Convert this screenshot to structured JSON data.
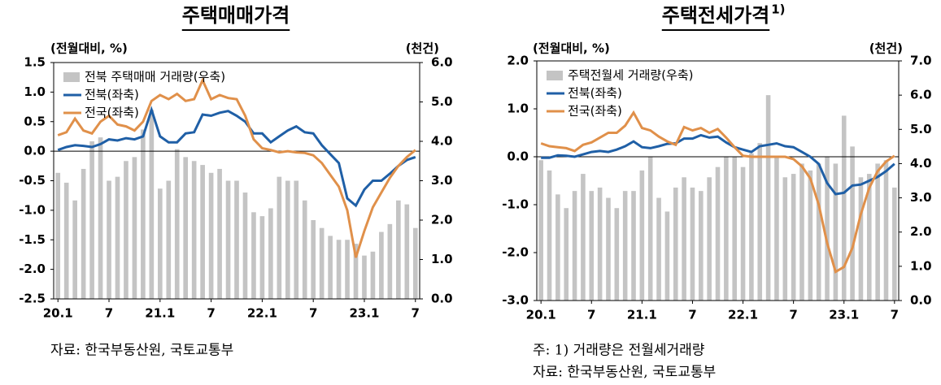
{
  "chart_data": [
    {
      "type": "line",
      "title": "주택매매가격",
      "y_label": "(전월대비, %)",
      "y2_label": "(천건)",
      "categories": [
        "20.1",
        null,
        null,
        null,
        null,
        null,
        "7",
        null,
        null,
        null,
        null,
        null,
        "21.1",
        null,
        null,
        null,
        null,
        null,
        "7",
        null,
        null,
        null,
        null,
        null,
        "22.1",
        null,
        null,
        null,
        null,
        null,
        "7",
        null,
        null,
        null,
        null,
        null,
        "23.1",
        null,
        null,
        null,
        null,
        null,
        "7"
      ],
      "ylim": [
        -2.5,
        1.5
      ],
      "yticks": [
        1.5,
        {
          "value": 1.0,
          "label": "1.0"
        },
        0.5,
        {
          "value": 0.0,
          "label": "0.0"
        },
        -0.5,
        {
          "value": -1.0,
          "label": "-1.0"
        },
        -1.5,
        {
          "value": -2.0,
          "label": "-2.0"
        },
        -2.5
      ],
      "y2lim": [
        0,
        6
      ],
      "y2ticks": [
        {
          "value": 6,
          "label": "6.0"
        },
        {
          "value": 5,
          "label": "5.0"
        },
        {
          "value": 4,
          "label": "4.0"
        },
        {
          "value": 3,
          "label": "3.0"
        },
        {
          "value": 2,
          "label": "2.0"
        },
        {
          "value": 1,
          "label": "1.0"
        },
        {
          "value": 0,
          "label": "0.0"
        }
      ],
      "series": [
        {
          "name": "전북 주택매매 거래량(우축)",
          "type": "bar",
          "axis": "y2",
          "color": "#c4c4c4",
          "values": [
            3.2,
            2.95,
            2.5,
            3.3,
            4.0,
            4.1,
            3.0,
            3.1,
            3.5,
            3.6,
            4.3,
            4.8,
            2.8,
            3.0,
            3.8,
            3.6,
            3.5,
            3.4,
            3.2,
            3.3,
            3.0,
            3.0,
            2.7,
            2.2,
            2.1,
            2.3,
            3.1,
            3.0,
            3.0,
            2.5,
            2.0,
            1.8,
            1.6,
            1.5,
            1.5,
            1.4,
            1.1,
            1.2,
            1.7,
            1.9,
            2.5,
            2.4,
            1.8
          ]
        },
        {
          "name": "전북(좌축)",
          "type": "line",
          "color": "#1f5fa6",
          "values": [
            0.02,
            0.07,
            0.1,
            0.09,
            0.07,
            0.12,
            0.2,
            0.18,
            0.22,
            0.2,
            0.25,
            0.7,
            0.25,
            0.15,
            0.15,
            0.3,
            0.32,
            0.62,
            0.6,
            0.65,
            0.68,
            0.6,
            0.5,
            0.3,
            0.3,
            0.15,
            0.25,
            0.35,
            0.42,
            0.32,
            0.3,
            0.1,
            -0.05,
            -0.2,
            -0.8,
            -0.92,
            -0.65,
            -0.5,
            -0.5,
            -0.38,
            -0.25,
            -0.15,
            -0.1
          ]
        },
        {
          "name": "전국(좌축)",
          "type": "line",
          "color": "#e0904a",
          "values": [
            0.27,
            0.32,
            0.55,
            0.35,
            0.3,
            0.5,
            0.6,
            0.45,
            0.42,
            0.35,
            0.5,
            0.85,
            0.95,
            0.88,
            0.97,
            0.85,
            0.88,
            1.2,
            0.88,
            0.95,
            0.9,
            0.88,
            0.6,
            0.2,
            0.05,
            0.02,
            -0.02,
            0.0,
            -0.02,
            -0.03,
            -0.07,
            -0.2,
            -0.4,
            -0.6,
            -1.0,
            -1.8,
            -1.35,
            -0.95,
            -0.7,
            -0.45,
            -0.25,
            -0.1,
            0.02
          ]
        }
      ],
      "notes": [
        "자료: 한국부동산원, 국토교통부"
      ]
    },
    {
      "type": "line",
      "title": "주택전세가격",
      "title_superscript": "1)",
      "y_label": "(전월대비, %)",
      "y2_label": "(천건)",
      "categories": [
        "20.1",
        null,
        null,
        null,
        null,
        null,
        "7",
        null,
        null,
        null,
        null,
        null,
        "21.1",
        null,
        null,
        null,
        null,
        null,
        "7",
        null,
        null,
        null,
        null,
        null,
        "22.1",
        null,
        null,
        null,
        null,
        null,
        "7",
        null,
        null,
        null,
        null,
        null,
        "23.1",
        null,
        null,
        null,
        null,
        null,
        "7"
      ],
      "ylim": [
        -3,
        2
      ],
      "yticks": [
        {
          "value": 2,
          "label": "2.0"
        },
        {
          "value": 1,
          "label": "1.0"
        },
        {
          "value": 0,
          "label": "0.0"
        },
        {
          "value": -1,
          "label": "-1.0"
        },
        {
          "value": -2,
          "label": "-2.0"
        },
        {
          "value": -3,
          "label": "-3.0"
        }
      ],
      "y2lim": [
        0,
        7
      ],
      "y2ticks": [
        {
          "value": 7,
          "label": "7.0"
        },
        {
          "value": 6,
          "label": "6.0"
        },
        {
          "value": 5,
          "label": "5.0"
        },
        {
          "value": 4,
          "label": "4.0"
        },
        {
          "value": 3,
          "label": "3.0"
        },
        {
          "value": 2,
          "label": "2.0"
        },
        {
          "value": 1,
          "label": "1.0"
        },
        {
          "value": 0,
          "label": "0.0"
        }
      ],
      "series": [
        {
          "name": "주택전월세 거래량(우축)",
          "type": "bar",
          "axis": "y2",
          "color": "#c4c4c4",
          "values": [
            4.1,
            3.8,
            3.1,
            2.7,
            3.2,
            3.7,
            3.2,
            3.3,
            3.0,
            2.7,
            3.2,
            3.2,
            3.8,
            4.2,
            3.0,
            2.6,
            3.3,
            3.6,
            3.3,
            3.2,
            3.6,
            3.9,
            4.2,
            4.2,
            3.9,
            4.3,
            4.6,
            6.0,
            4.2,
            3.6,
            3.7,
            4.0,
            3.8,
            4.0,
            4.2,
            4.0,
            5.4,
            4.5,
            3.6,
            3.7,
            4.0,
            4.1,
            3.3
          ]
        },
        {
          "name": "전북(좌축)",
          "type": "line",
          "color": "#1f5fa6",
          "values": [
            -0.02,
            -0.02,
            0.03,
            0.02,
            0.0,
            0.05,
            0.1,
            0.12,
            0.1,
            0.15,
            0.22,
            0.32,
            0.2,
            0.18,
            0.22,
            0.27,
            0.28,
            0.38,
            0.38,
            0.45,
            0.4,
            0.42,
            0.3,
            0.2,
            0.15,
            0.1,
            0.22,
            0.25,
            0.28,
            0.22,
            0.2,
            0.1,
            0.0,
            -0.15,
            -0.55,
            -0.78,
            -0.75,
            -0.6,
            -0.58,
            -0.5,
            -0.42,
            -0.3,
            -0.15
          ]
        },
        {
          "name": "전국(좌축)",
          "type": "line",
          "color": "#e0904a",
          "values": [
            0.28,
            0.22,
            0.2,
            0.18,
            0.12,
            0.25,
            0.3,
            0.4,
            0.5,
            0.5,
            0.65,
            0.92,
            0.6,
            0.55,
            0.42,
            0.32,
            0.25,
            0.62,
            0.55,
            0.6,
            0.5,
            0.58,
            0.4,
            0.2,
            0.02,
            0.0,
            0.0,
            0.0,
            0.0,
            0.0,
            -0.05,
            -0.2,
            -0.45,
            -1.0,
            -1.8,
            -2.4,
            -2.3,
            -1.9,
            -1.2,
            -0.65,
            -0.3,
            -0.1,
            0.02
          ]
        }
      ],
      "notes": [
        "주: 1) 거래량은 전월세거래량",
        "자료: 한국부동산원, 국토교통부"
      ]
    }
  ]
}
